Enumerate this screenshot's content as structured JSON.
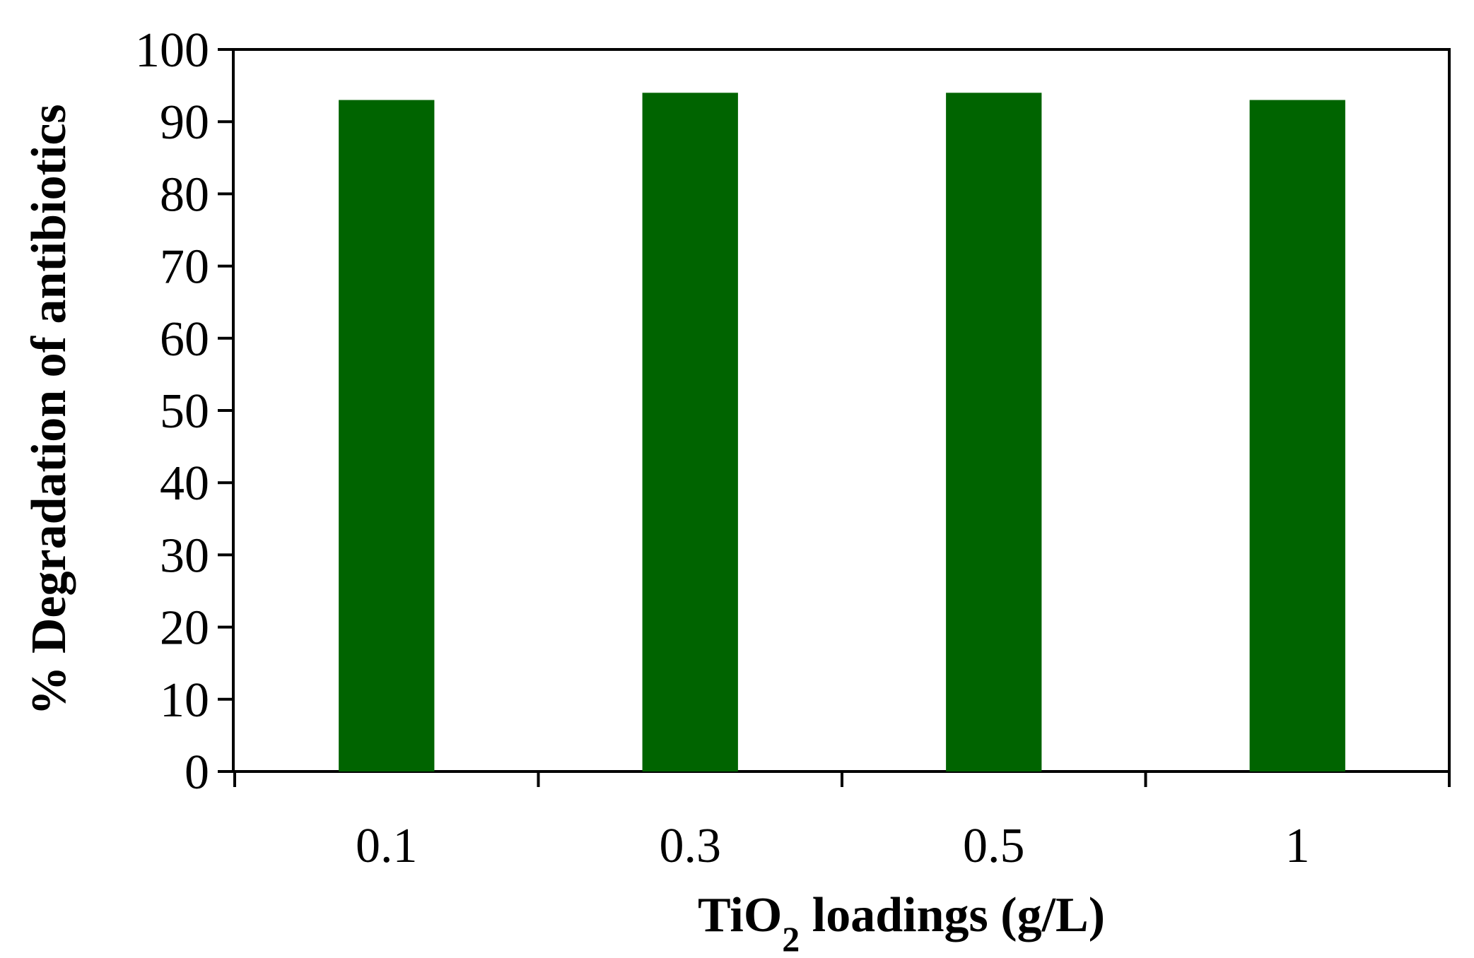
{
  "chart_data": {
    "type": "bar",
    "categories": [
      "0.1",
      "0.3",
      "0.5",
      "1"
    ],
    "values": [
      93,
      94,
      94,
      93
    ],
    "xlabel": {
      "main": "TiO",
      "subscript": "2",
      "rest": " loadings (g/L)"
    },
    "ylabel": "% Degradation of antibiotics",
    "ylim": [
      0,
      100
    ],
    "yticks": [
      "0",
      "10",
      "20",
      "30",
      "40",
      "50",
      "60",
      "70",
      "80",
      "90",
      "100"
    ],
    "bar_color": "#006400",
    "grid": false,
    "legend": "none"
  }
}
